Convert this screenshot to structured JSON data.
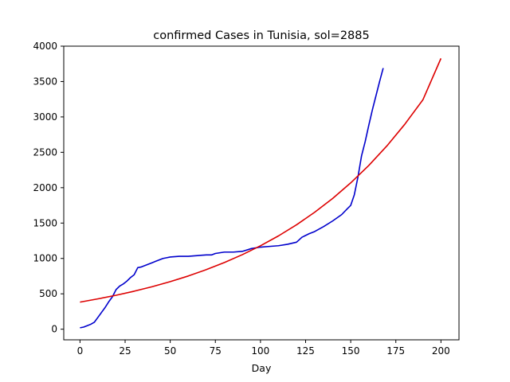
{
  "chart_data": {
    "type": "line",
    "title": "confirmed Cases in Tunisia, sol=2885",
    "xlabel": "Day",
    "ylabel": "",
    "xlim": [
      -9,
      210
    ],
    "ylim": [
      -150,
      4000
    ],
    "xticks": [
      0,
      25,
      50,
      75,
      100,
      125,
      150,
      175,
      200
    ],
    "yticks": [
      0,
      500,
      1000,
      1500,
      2000,
      2500,
      3000,
      3500,
      4000
    ],
    "grid": false,
    "legend": false,
    "series": [
      {
        "color": "#0000cc",
        "x": [
          0,
          2,
          4,
          6,
          8,
          10,
          12,
          14,
          16,
          18,
          20,
          22,
          24,
          26,
          28,
          30,
          32,
          34,
          36,
          38,
          40,
          42,
          44,
          46,
          48,
          50,
          55,
          60,
          65,
          70,
          73,
          75,
          80,
          85,
          90,
          95,
          100,
          105,
          110,
          115,
          120,
          123,
          127,
          130,
          135,
          140,
          145,
          148,
          150,
          152,
          154,
          156,
          158,
          160,
          162,
          164,
          166,
          168
        ],
        "y": [
          20,
          30,
          50,
          70,
          100,
          170,
          240,
          310,
          390,
          460,
          560,
          610,
          640,
          680,
          730,
          770,
          870,
          880,
          900,
          920,
          940,
          960,
          980,
          1000,
          1010,
          1020,
          1030,
          1030,
          1040,
          1050,
          1050,
          1070,
          1090,
          1090,
          1100,
          1140,
          1160,
          1170,
          1180,
          1200,
          1230,
          1300,
          1350,
          1380,
          1450,
          1530,
          1620,
          1700,
          1750,
          1900,
          2150,
          2450,
          2650,
          2880,
          3100,
          3300,
          3500,
          3690
        ]
      },
      {
        "color": "#dd0000",
        "x": [
          0,
          10,
          20,
          30,
          40,
          50,
          60,
          70,
          80,
          90,
          100,
          110,
          120,
          130,
          140,
          150,
          160,
          170,
          180,
          190,
          200
        ],
        "y": [
          383,
          429,
          480,
          537,
          601,
          672,
          752,
          842,
          942,
          1054,
          1179,
          1319,
          1476,
          1652,
          1848,
          2068,
          2314,
          2589,
          2897,
          3242,
          3827
        ]
      }
    ]
  }
}
